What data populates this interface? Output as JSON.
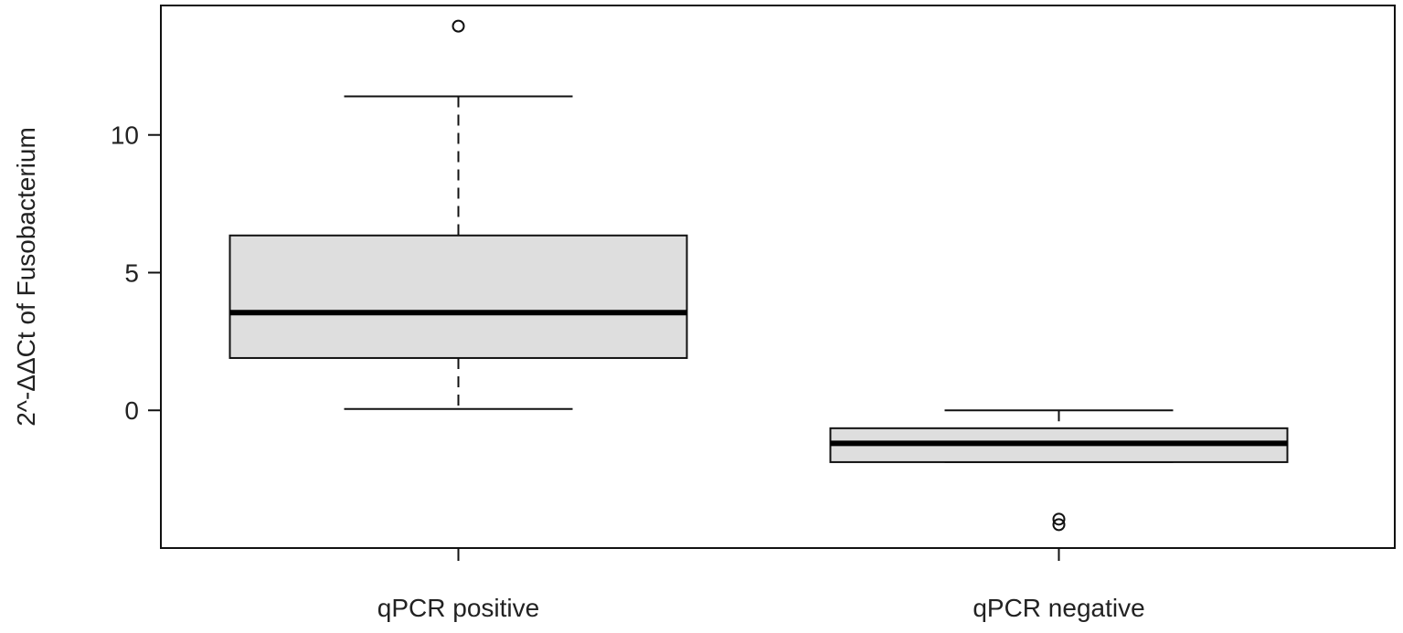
{
  "chart_data": {
    "type": "box",
    "ylabel": "2^-ΔΔCt of Fusobacterium",
    "xlabel": "",
    "title": "",
    "ylim": [
      -5,
      14.7
    ],
    "y_ticks": [
      0,
      5,
      10
    ],
    "y_tick_labels": [
      "0",
      "5",
      "10"
    ],
    "grid": false,
    "box_fill": "#dedede",
    "line_color": "#111111",
    "groups": [
      {
        "label": "qPCR positive",
        "whisker_low": 0.05,
        "q1": 1.9,
        "median": 3.55,
        "q3": 6.35,
        "whisker_high": 11.4,
        "outliers": [
          13.95
        ]
      },
      {
        "label": "qPCR negative",
        "whisker_low": -1.88,
        "q1": -1.88,
        "median": -1.2,
        "q3": -0.65,
        "whisker_high": 0.0,
        "outliers": [
          -4.15,
          -3.95
        ]
      }
    ]
  }
}
